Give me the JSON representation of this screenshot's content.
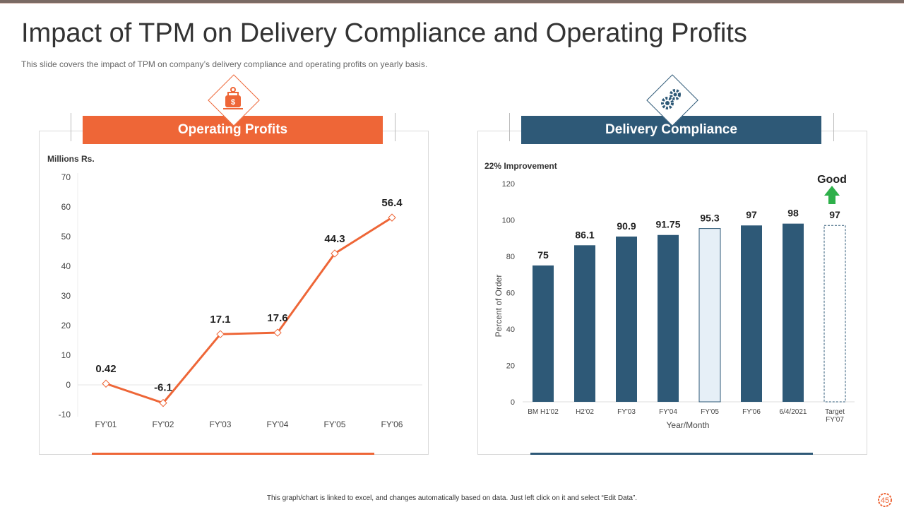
{
  "title": "Impact of TPM on Delivery Compliance and Operating Profits",
  "subtitle": "This slide covers the impact of TPM on company’s delivery compliance and operating profits on yearly basis.",
  "footer": "This graph/chart is linked to excel, and changes automatically based on data. Just left click on it and select “Edit Data”.",
  "page_number": "45",
  "colors": {
    "orange": "#ee6637",
    "navy": "#2e5977",
    "green": "#2eb04a",
    "highlight": "#e6eff7"
  },
  "icons": {
    "left": "money-bag-icon",
    "right": "gears-icon",
    "good": "green-up-arrow-icon",
    "page": "gear-page-icon"
  },
  "chart_data": [
    {
      "type": "line",
      "title": "Operating Profits",
      "ylabel": "Millions Rs.",
      "xlabel": "",
      "categories": [
        "FY'01",
        "FY'02",
        "FY'03",
        "FY'04",
        "FY'05",
        "FY'06"
      ],
      "values": [
        0.42,
        -6.1,
        17.1,
        17.6,
        44.3,
        56.4
      ],
      "labels": [
        "0.42",
        "-6.1",
        "17.1",
        "17.6",
        "44.3",
        "56.4"
      ],
      "ylim": [
        -10,
        70
      ],
      "yticks": [
        "70",
        "60",
        "50",
        "40",
        "30",
        "20",
        "10",
        "0",
        "-10"
      ],
      "ytick_values": [
        70,
        60,
        50,
        40,
        30,
        20,
        10,
        0,
        -10
      ],
      "grid": false
    },
    {
      "type": "bar",
      "title": "Delivery Compliance",
      "annotation": "22%  Improvement",
      "good_label": "Good",
      "ylabel": "Percent of Order",
      "xlabel": "Year/Month",
      "categories": [
        "BM H1'02",
        "H2'02",
        "FY'03",
        "FY'04",
        "FY'05",
        "FY'06",
        "6/4/2021",
        "Target FY'07"
      ],
      "category_lines": [
        [
          "BM H1'02"
        ],
        [
          "H2'02"
        ],
        [
          "FY'03"
        ],
        [
          "FY'04"
        ],
        [
          "FY'05"
        ],
        [
          "FY'06"
        ],
        [
          "6/4/2021"
        ],
        [
          "Target",
          "FY'07"
        ]
      ],
      "values": [
        75,
        86.1,
        90.9,
        91.75,
        95.3,
        97,
        98,
        97
      ],
      "labels": [
        "75",
        "86.1",
        "90.9",
        "91.75",
        "95.3",
        "97",
        "98",
        "97"
      ],
      "bar_styles": [
        "solid",
        "solid",
        "solid",
        "solid",
        "highlight",
        "solid",
        "solid",
        "dashed"
      ],
      "ylim": [
        0,
        120
      ],
      "yticks": [
        "120",
        "100",
        "80",
        "60",
        "40",
        "20",
        "0"
      ],
      "ytick_values": [
        120,
        100,
        80,
        60,
        40,
        20,
        0
      ],
      "grid": false
    }
  ]
}
